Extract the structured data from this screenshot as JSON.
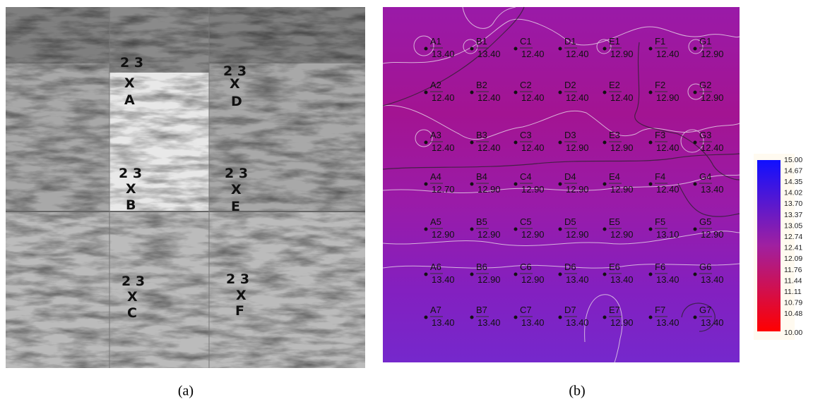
{
  "panel_a": {
    "markers": [
      {
        "numbers": "2 3",
        "cross": "X",
        "letter": "A"
      },
      {
        "numbers": "2 3",
        "cross": "X",
        "letter": "D"
      },
      {
        "numbers": "2 3",
        "cross": "X",
        "letter": "B"
      },
      {
        "numbers": "2 3",
        "cross": "X",
        "letter": "E"
      },
      {
        "numbers": "2 3",
        "cross": "X",
        "letter": "C"
      },
      {
        "numbers": "2 3",
        "cross": "X",
        "letter": "F"
      }
    ],
    "caption": "(a)"
  },
  "panel_b": {
    "points": [
      [
        {
          "label": "A1",
          "value": "13.40"
        },
        {
          "label": "B1",
          "value": "13.40"
        },
        {
          "label": "C1",
          "value": "12.40"
        },
        {
          "label": "D1",
          "value": "12.40"
        },
        {
          "label": "E1",
          "value": "12.90"
        },
        {
          "label": "F1",
          "value": "12.40"
        },
        {
          "label": "G1",
          "value": "12.90"
        }
      ],
      [
        {
          "label": "A2",
          "value": "12.40"
        },
        {
          "label": "B2",
          "value": "12.40"
        },
        {
          "label": "C2",
          "value": "12.40"
        },
        {
          "label": "D2",
          "value": "12.40"
        },
        {
          "label": "E2",
          "value": "12.40"
        },
        {
          "label": "F2",
          "value": "12.90"
        },
        {
          "label": "G2",
          "value": "12.90"
        }
      ],
      [
        {
          "label": "A3",
          "value": "12.40"
        },
        {
          "label": "B3",
          "value": "12.40"
        },
        {
          "label": "C3",
          "value": "12.40"
        },
        {
          "label": "D3",
          "value": "12.90"
        },
        {
          "label": "E3",
          "value": "12.90"
        },
        {
          "label": "F3",
          "value": "12.40"
        },
        {
          "label": "G3",
          "value": "12.40"
        }
      ],
      [
        {
          "label": "A4",
          "value": "12.70"
        },
        {
          "label": "B4",
          "value": "12.90"
        },
        {
          "label": "C4",
          "value": "12.90"
        },
        {
          "label": "D4",
          "value": "12.90"
        },
        {
          "label": "E4",
          "value": "12.90"
        },
        {
          "label": "F4",
          "value": "12.40"
        },
        {
          "label": "G4",
          "value": "13.40"
        }
      ],
      [
        {
          "label": "A5",
          "value": "12.90"
        },
        {
          "label": "B5",
          "value": "12.90"
        },
        {
          "label": "C5",
          "value": "12.90"
        },
        {
          "label": "D5",
          "value": "12.90"
        },
        {
          "label": "E5",
          "value": "12.90"
        },
        {
          "label": "F5",
          "value": "13.10"
        },
        {
          "label": "G5",
          "value": "12.90"
        }
      ],
      [
        {
          "label": "A6",
          "value": "13.40"
        },
        {
          "label": "B6",
          "value": "12.90"
        },
        {
          "label": "C6",
          "value": "12.90"
        },
        {
          "label": "D6",
          "value": "13.40"
        },
        {
          "label": "E6",
          "value": "13.40"
        },
        {
          "label": "F6",
          "value": "13.40"
        },
        {
          "label": "G6",
          "value": "13.40"
        }
      ],
      [
        {
          "label": "A7",
          "value": "13.40"
        },
        {
          "label": "B7",
          "value": "13.40"
        },
        {
          "label": "C7",
          "value": "13.40"
        },
        {
          "label": "D7",
          "value": "13.40"
        },
        {
          "label": "E7",
          "value": "12.90"
        },
        {
          "label": "F7",
          "value": "13.40"
        },
        {
          "label": "G7",
          "value": "13.40"
        }
      ]
    ],
    "colorbar": [
      "15.00",
      "14.67",
      "14.35",
      "14.02",
      "13.70",
      "13.37",
      "13.05",
      "12.74",
      "12.41",
      "12.09",
      "11.76",
      "11.44",
      "11.11",
      "10.79",
      "10.48",
      "10.00"
    ],
    "caption": "(b)"
  }
}
